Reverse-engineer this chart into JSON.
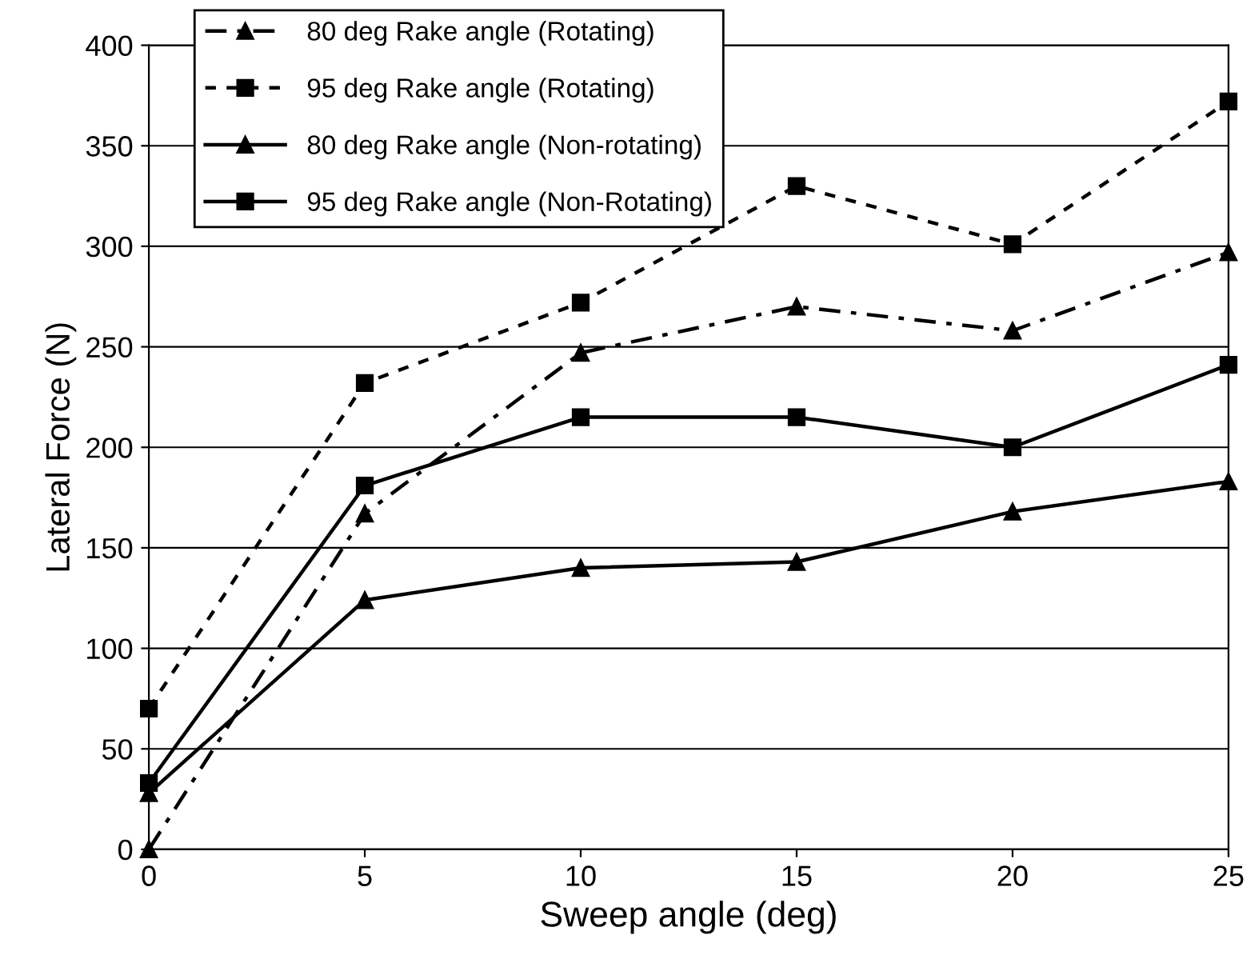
{
  "chart_data": {
    "type": "line",
    "xlabel": "Sweep angle (deg)",
    "ylabel": "Lateral Force (N)",
    "x": [
      0,
      5,
      10,
      15,
      20,
      25
    ],
    "series": [
      {
        "name": "80 deg Rake angle (Rotating)",
        "color": "#000000",
        "marker": "triangle",
        "line_style": "dashdot",
        "values": [
          0,
          167,
          247,
          270,
          258,
          297
        ]
      },
      {
        "name": "95 deg Rake angle (Rotating)",
        "color": "#000000",
        "marker": "square",
        "line_style": "dashed",
        "values": [
          70,
          232,
          272,
          330,
          301,
          372
        ]
      },
      {
        "name": "80 deg Rake angle (Non-rotating)",
        "color": "#000000",
        "marker": "triangle",
        "line_style": "solid",
        "values": [
          28,
          124,
          140,
          143,
          168,
          183
        ]
      },
      {
        "name": "95 deg Rake angle (Non-Rotating)",
        "color": "#000000",
        "marker": "square",
        "line_style": "solid",
        "values": [
          33,
          181,
          215,
          215,
          200,
          241
        ]
      }
    ],
    "xlim": [
      0,
      25
    ],
    "xticks": [
      0,
      5,
      10,
      15,
      20,
      25
    ],
    "ylim": [
      0,
      400
    ],
    "yticks": [
      0,
      50,
      100,
      150,
      200,
      250,
      300,
      350,
      400
    ],
    "grid": "y",
    "legend": "top left"
  }
}
